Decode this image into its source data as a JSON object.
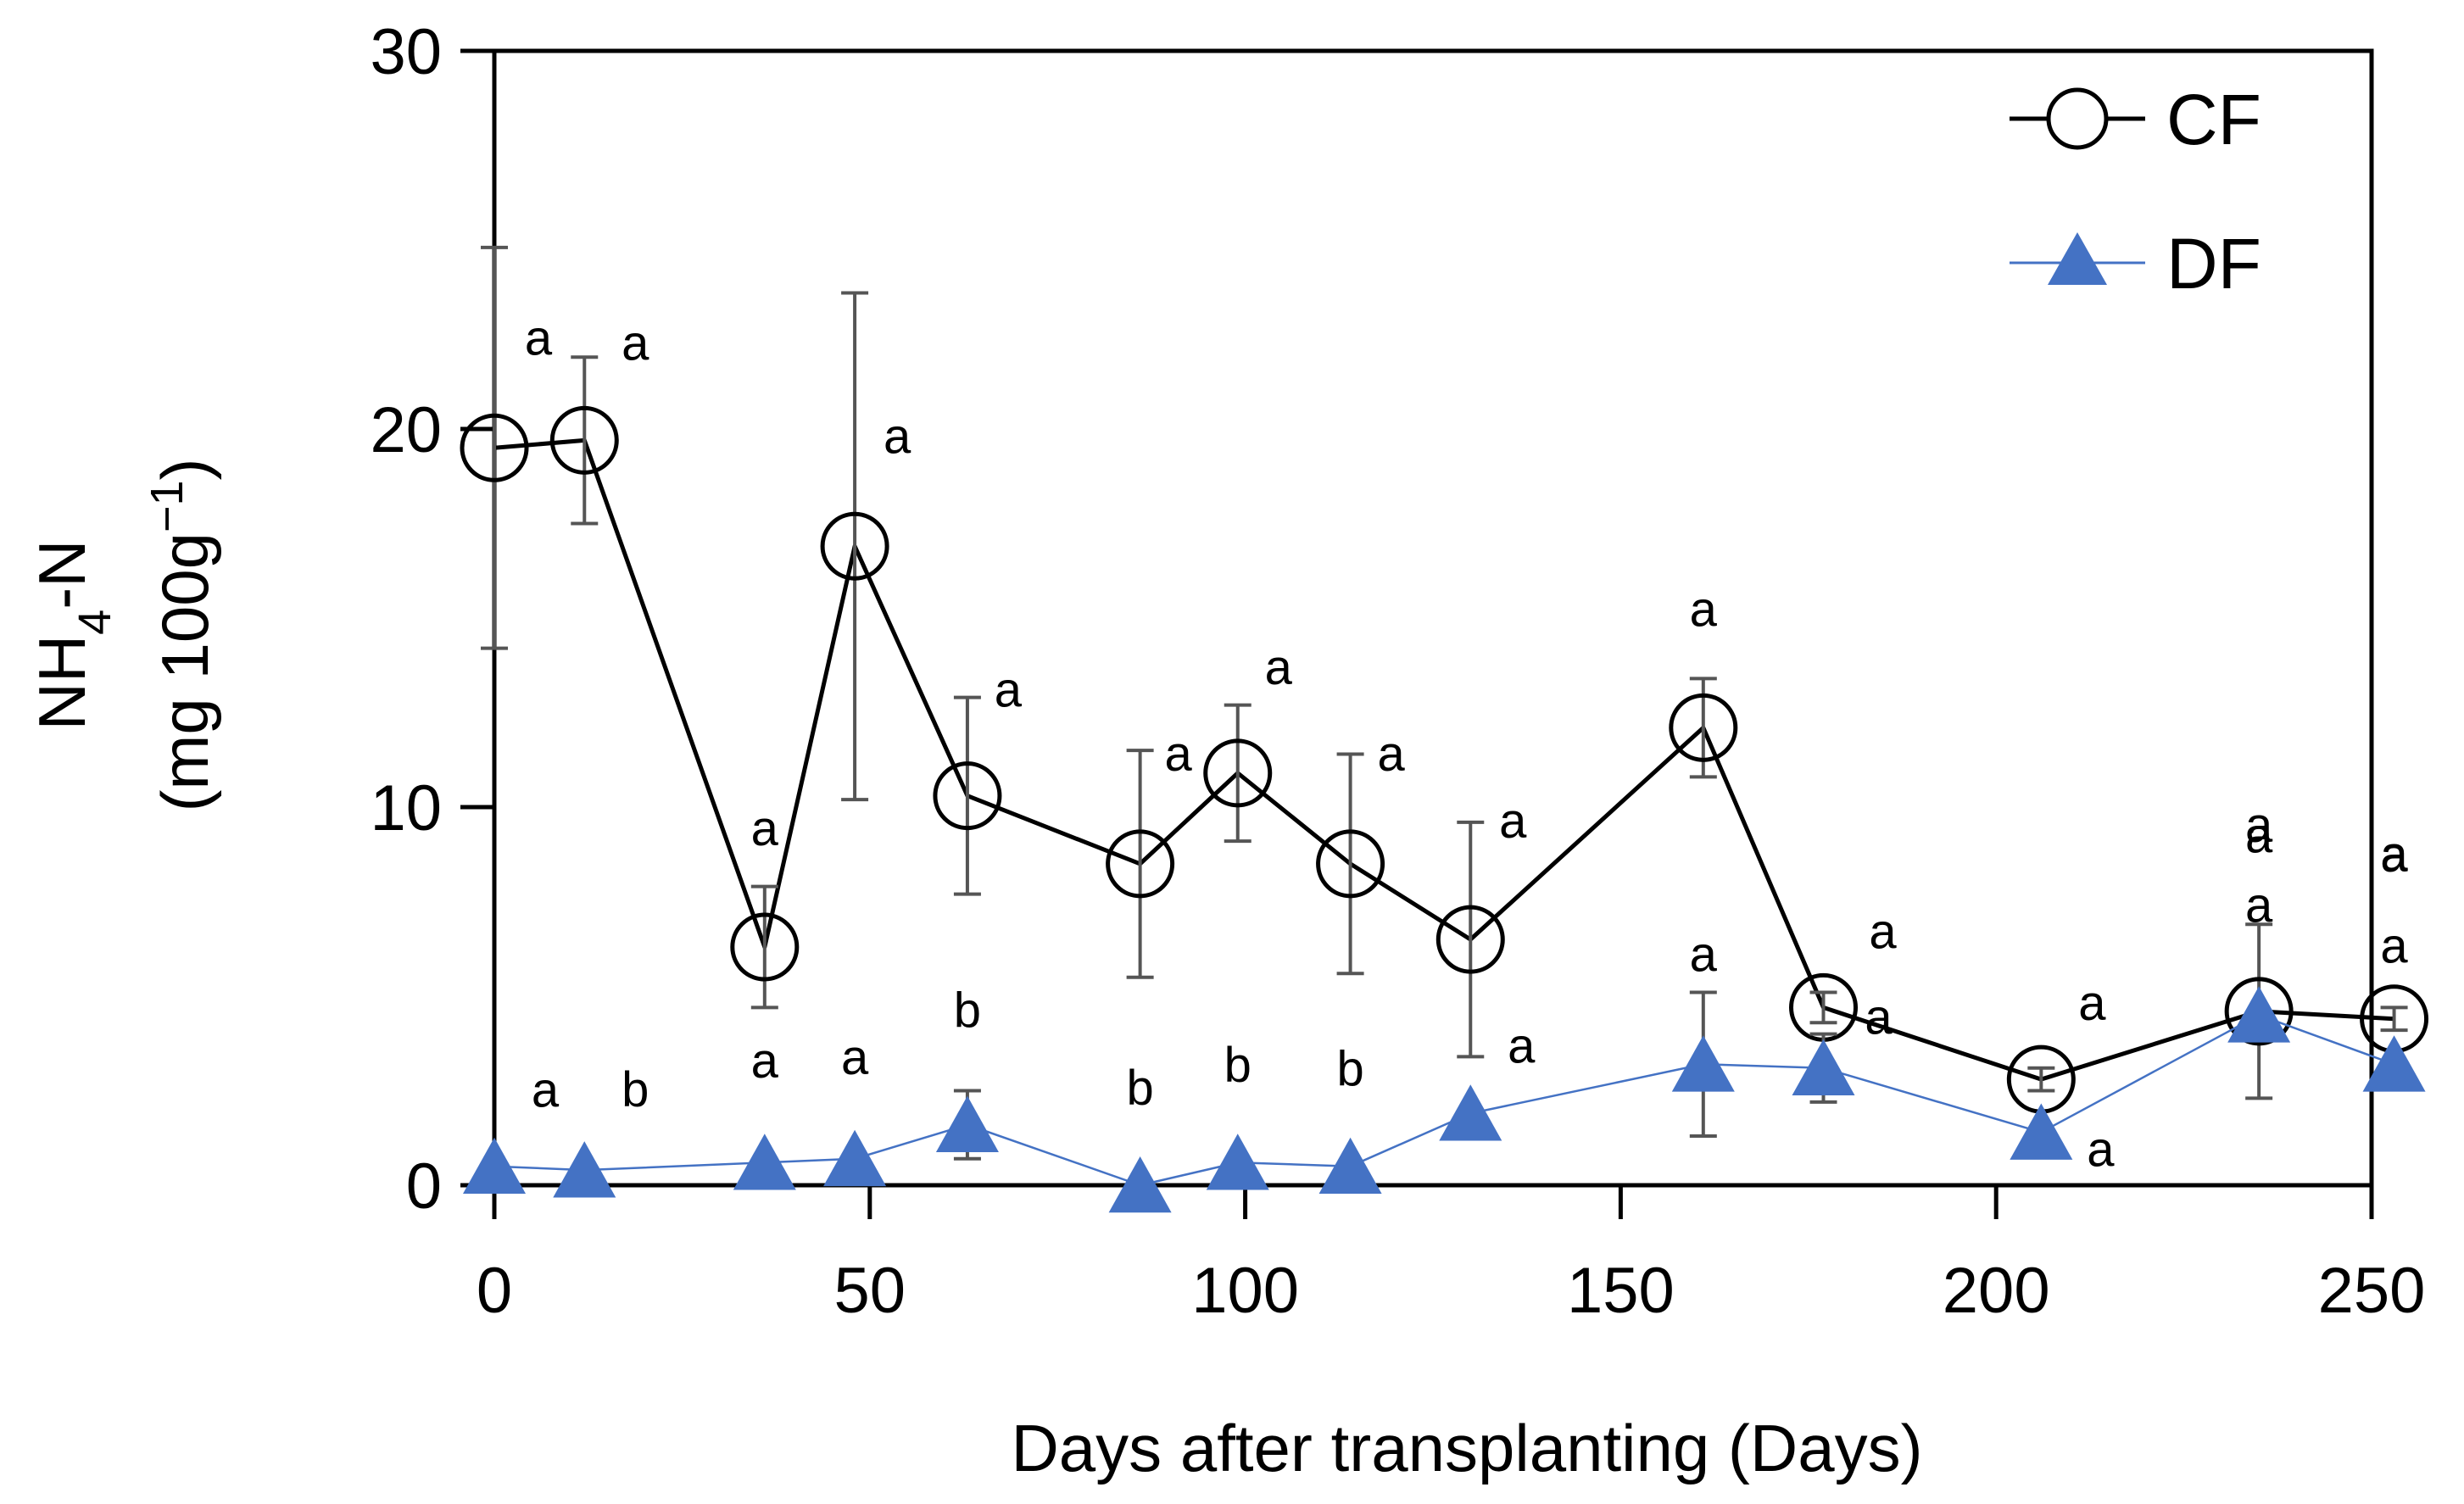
{
  "chart_data": {
    "type": "line",
    "title": "",
    "xlabel": "Days after transplanting (Days)",
    "ylabel": {
      "line1_prefix": "NH",
      "line1_subscript": "4",
      "line1_suffix": "-N",
      "line2_prefix": "(mg 100g",
      "line2_superscript": "−1",
      "line2_suffix": ")"
    },
    "xlim": [
      0,
      250
    ],
    "ylim": [
      0,
      30
    ],
    "xticks": [
      {
        "value": 0,
        "label": "0"
      },
      {
        "value": 50,
        "label": "50"
      },
      {
        "value": 100,
        "label": "100"
      },
      {
        "value": 150,
        "label": "150"
      },
      {
        "value": 200,
        "label": "200"
      },
      {
        "value": 250,
        "label": "250"
      }
    ],
    "yticks": [
      {
        "value": 0,
        "label": "0"
      },
      {
        "value": 10,
        "label": "10"
      },
      {
        "value": 20,
        "label": "20"
      },
      {
        "value": 30,
        "label": "30"
      }
    ],
    "grid": false,
    "legend_position": "top-right",
    "series": [
      {
        "name": "CF",
        "marker": "open-circle",
        "color": "#000000",
        "points": [
          {
            "x": 0,
            "y": 19.5,
            "err": 5.3,
            "label": "a"
          },
          {
            "x": 12,
            "y": 19.7,
            "err": 2.2,
            "label": "a"
          },
          {
            "x": 36,
            "y": 6.3,
            "err": 1.6,
            "label": "a"
          },
          {
            "x": 48,
            "y": 16.9,
            "err": 6.7,
            "label": "a"
          },
          {
            "x": 63,
            "y": 10.3,
            "err": 2.6,
            "label": "a"
          },
          {
            "x": 86,
            "y": 8.5,
            "err": 3.0,
            "label": "a"
          },
          {
            "x": 99,
            "y": 10.9,
            "err": 1.8,
            "label": "a"
          },
          {
            "x": 114,
            "y": 8.5,
            "err": 2.9,
            "label": "a"
          },
          {
            "x": 130,
            "y": 6.5,
            "err": 3.1,
            "label": "a"
          },
          {
            "x": 161,
            "y": 12.1,
            "err": 1.3,
            "label": "a"
          },
          {
            "x": 177,
            "y": 4.7,
            "err": 0.4,
            "label": "a"
          },
          {
            "x": 206,
            "y": 2.8,
            "err": 0.3,
            "label": "a"
          },
          {
            "x": 235,
            "y": 4.6,
            "err": 2.3,
            "label": "a"
          },
          {
            "x": 253,
            "y": 4.4,
            "err": 0.3,
            "label": "a"
          }
        ]
      },
      {
        "name": "DF",
        "marker": "filled-triangle",
        "color": "#4472C4",
        "points": [
          {
            "x": 0,
            "y": 0.5,
            "err": 0,
            "label": "a"
          },
          {
            "x": 12,
            "y": 0.4,
            "err": 0,
            "label": "b"
          },
          {
            "x": 36,
            "y": 0.6,
            "err": 0,
            "label": "a"
          },
          {
            "x": 48,
            "y": 0.7,
            "err": 0,
            "label": "a"
          },
          {
            "x": 63,
            "y": 1.6,
            "err": 0.9,
            "label": "b"
          },
          {
            "x": 86,
            "y": 0.0,
            "err": 0,
            "label": "b"
          },
          {
            "x": 99,
            "y": 0.6,
            "err": 0,
            "label": "b"
          },
          {
            "x": 114,
            "y": 0.5,
            "err": 0,
            "label": "b"
          },
          {
            "x": 130,
            "y": 1.9,
            "err": 0,
            "label": "a"
          },
          {
            "x": 161,
            "y": 3.2,
            "err": 1.9,
            "label": "a"
          },
          {
            "x": 177,
            "y": 3.1,
            "err": 0.9,
            "label": "a"
          },
          {
            "x": 206,
            "y": 1.4,
            "err": 0,
            "label": "a"
          },
          {
            "x": 235,
            "y": 4.5,
            "err": 0,
            "label": "a"
          },
          {
            "x": 253,
            "y": 3.2,
            "err": 0,
            "label": "a"
          }
        ]
      }
    ],
    "annotations": [
      {
        "x": 235,
        "y": 8.8,
        "text": "a"
      },
      {
        "x": 253,
        "y": 8.3,
        "text": "a"
      }
    ]
  }
}
